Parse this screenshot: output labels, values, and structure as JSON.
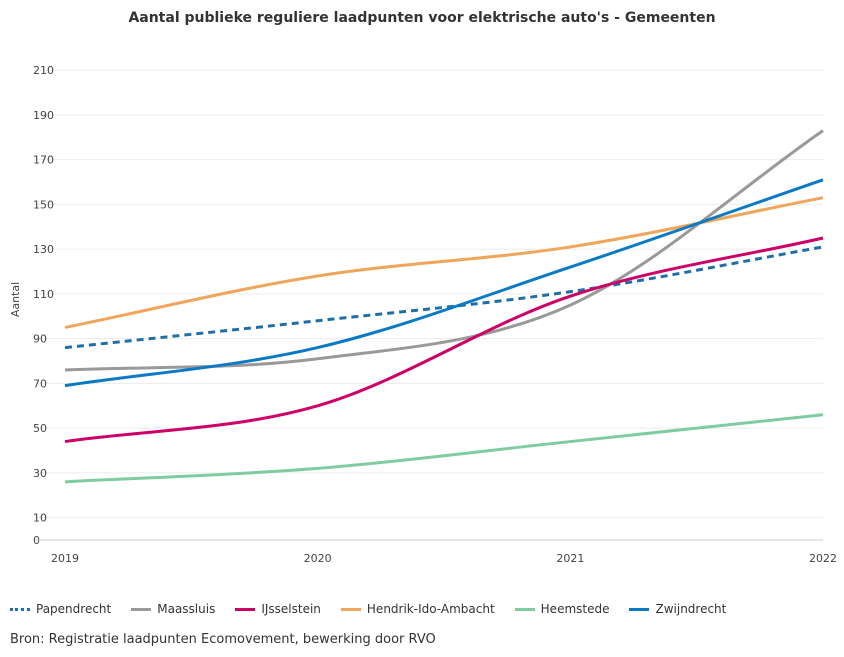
{
  "chart_data": {
    "type": "line",
    "title": "Aantal publieke reguliere laadpunten voor elektrische auto's - Gemeenten",
    "ylabel": "Aantal",
    "xlabel": "",
    "categories": [
      "2019",
      "2020",
      "2021",
      "2022"
    ],
    "y_ticks": [
      0,
      10,
      30,
      50,
      70,
      90,
      110,
      130,
      150,
      170,
      190,
      210
    ],
    "ylim": [
      0,
      215
    ],
    "grid": true,
    "legend_position": "bottom",
    "series": [
      {
        "name": "Papendrecht",
        "values": [
          86,
          98,
          111,
          131
        ],
        "color": "#1f6fa6",
        "dash": true
      },
      {
        "name": "Maassluis",
        "values": [
          76,
          81,
          105,
          183
        ],
        "color": "#999999",
        "dash": false
      },
      {
        "name": "IJsselstein",
        "values": [
          44,
          60,
          109,
          135
        ],
        "color": "#cc0066",
        "dash": false
      },
      {
        "name": "Hendrik-Ido-Ambacht",
        "values": [
          95,
          118,
          131,
          153
        ],
        "color": "#efa55a",
        "dash": false
      },
      {
        "name": "Heemstede",
        "values": [
          26,
          32,
          44,
          56
        ],
        "color": "#7fcca1",
        "dash": false
      },
      {
        "name": "Zwijndrecht",
        "values": [
          69,
          86,
          122,
          161
        ],
        "color": "#0b7ac5",
        "dash": false
      }
    ]
  },
  "source": "Bron: Registratie laadpunten Ecomovement, bewerking door RVO"
}
